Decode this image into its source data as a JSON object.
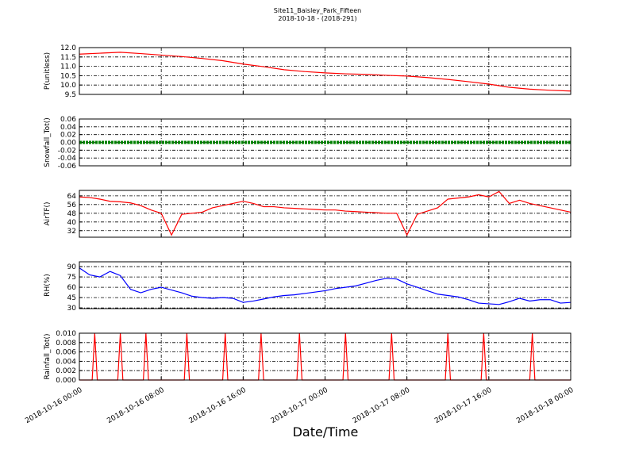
{
  "title": "Site11_Baisley_Park_Fifteen",
  "subtitle": "2018-10-18 - (2018-291)",
  "xlabel": "Date/Time",
  "chart_data": [
    {
      "type": "line",
      "ylabel": "P(unitless)",
      "grid": true,
      "xlim": [
        "2018-10-16 00:00",
        "2018-10-18 00:00"
      ],
      "ylim": [
        9.5,
        12
      ],
      "yticks": [
        9.5,
        {
          "value": 10,
          "label": "10.0"
        },
        10.5,
        {
          "value": 11,
          "label": "11.0"
        },
        11.5,
        {
          "value": 12,
          "label": "12.0"
        }
      ],
      "x": [
        "2018-10-16 00:00",
        "2018-10-16 02:00",
        "2018-10-16 04:00",
        "2018-10-16 06:00",
        "2018-10-16 08:00",
        "2018-10-16 10:00",
        "2018-10-16 12:00",
        "2018-10-16 14:00",
        "2018-10-16 16:00",
        "2018-10-16 18:00",
        "2018-10-16 20:00",
        "2018-10-16 22:00",
        "2018-10-17 00:00",
        "2018-10-17 02:00",
        "2018-10-17 04:00",
        "2018-10-17 06:00",
        "2018-10-17 08:00",
        "2018-10-17 10:00",
        "2018-10-17 12:00",
        "2018-10-17 14:00",
        "2018-10-17 16:00",
        "2018-10-17 18:00",
        "2018-10-17 20:00",
        "2018-10-17 22:00",
        "2018-10-18 00:00"
      ],
      "series": [
        {
          "name": "P",
          "color": "#ff0000",
          "values": [
            11.65,
            11.7,
            11.75,
            11.68,
            11.6,
            11.52,
            11.42,
            11.3,
            11.12,
            10.98,
            10.82,
            10.72,
            10.65,
            10.6,
            10.57,
            10.52,
            10.48,
            10.4,
            10.3,
            10.18,
            10.05,
            9.88,
            9.78,
            9.72,
            9.68
          ]
        }
      ]
    },
    {
      "type": "line",
      "ylabel": "Snowfall_Tot()",
      "grid": true,
      "xlim": [
        "2018-10-16 00:00",
        "2018-10-18 00:00"
      ],
      "ylim": [
        -0.06,
        0.06
      ],
      "yticks": [
        {
          "value": -0.06,
          "label": "-0.06"
        },
        -0.04,
        -0.02,
        {
          "value": 0,
          "label": "0.00"
        },
        0.02,
        0.04,
        0.06
      ],
      "x": [
        "2018-10-16 00:00",
        "2018-10-16 02:00",
        "2018-10-16 04:00",
        "2018-10-16 06:00",
        "2018-10-16 08:00",
        "2018-10-16 10:00",
        "2018-10-16 12:00",
        "2018-10-16 14:00",
        "2018-10-16 16:00",
        "2018-10-16 18:00",
        "2018-10-16 20:00",
        "2018-10-16 22:00",
        "2018-10-17 00:00",
        "2018-10-17 02:00",
        "2018-10-17 04:00",
        "2018-10-17 06:00",
        "2018-10-17 08:00",
        "2018-10-17 10:00",
        "2018-10-17 12:00",
        "2018-10-17 14:00",
        "2018-10-17 16:00",
        "2018-10-17 18:00",
        "2018-10-17 20:00",
        "2018-10-17 22:00",
        "2018-10-18 00:00"
      ],
      "series": [
        {
          "name": "Snowfall",
          "color": "#008000",
          "values": [
            0,
            0,
            0,
            0,
            0,
            0,
            0,
            0,
            0,
            0,
            0,
            0,
            0,
            0,
            0,
            0,
            0,
            0,
            0,
            0,
            0,
            0,
            0,
            0,
            0
          ]
        }
      ]
    },
    {
      "type": "line",
      "ylabel": "AirTF()",
      "grid": true,
      "xlim": [
        "2018-10-16 00:00",
        "2018-10-18 00:00"
      ],
      "ylim": [
        26,
        69
      ],
      "yticks": [
        32,
        40,
        48,
        56,
        64
      ],
      "x": [
        "2018-10-16 00:00",
        "2018-10-16 01:00",
        "2018-10-16 02:00",
        "2018-10-16 03:00",
        "2018-10-16 04:00",
        "2018-10-16 05:00",
        "2018-10-16 06:00",
        "2018-10-16 07:00",
        "2018-10-16 08:00",
        "2018-10-16 09:00",
        "2018-10-16 10:00",
        "2018-10-16 11:00",
        "2018-10-16 12:00",
        "2018-10-16 13:00",
        "2018-10-16 14:00",
        "2018-10-16 15:00",
        "2018-10-16 16:00",
        "2018-10-16 17:00",
        "2018-10-16 18:00",
        "2018-10-16 19:00",
        "2018-10-16 20:00",
        "2018-10-16 21:00",
        "2018-10-16 22:00",
        "2018-10-16 23:00",
        "2018-10-17 00:00",
        "2018-10-17 01:00",
        "2018-10-17 02:00",
        "2018-10-17 03:00",
        "2018-10-17 04:00",
        "2018-10-17 05:00",
        "2018-10-17 06:00",
        "2018-10-17 07:00",
        "2018-10-17 08:00",
        "2018-10-17 09:00",
        "2018-10-17 10:00",
        "2018-10-17 11:00",
        "2018-10-17 12:00",
        "2018-10-17 13:00",
        "2018-10-17 14:00",
        "2018-10-17 15:00",
        "2018-10-17 16:00",
        "2018-10-17 17:00",
        "2018-10-17 18:00",
        "2018-10-17 19:00",
        "2018-10-17 20:00",
        "2018-10-17 21:00",
        "2018-10-17 22:00",
        "2018-10-17 23:00",
        "2018-10-18 00:00"
      ],
      "series": [
        {
          "name": "AirTF",
          "color": "#ff0000",
          "values": [
            63,
            62.5,
            61,
            59,
            58.5,
            57.5,
            55,
            51,
            48,
            28,
            47,
            48,
            49,
            53,
            55,
            57,
            59,
            57,
            54,
            54,
            53,
            52.5,
            52,
            51.5,
            51,
            51,
            50,
            49.5,
            49,
            48.5,
            48,
            48,
            28,
            47,
            50,
            53,
            61,
            62,
            63,
            65,
            63,
            68,
            57,
            60,
            57,
            55,
            53,
            51,
            49
          ]
        }
      ]
    },
    {
      "type": "line",
      "ylabel": "RH(%)",
      "grid": true,
      "xlim": [
        "2018-10-16 00:00",
        "2018-10-18 00:00"
      ],
      "ylim": [
        29,
        97
      ],
      "yticks": [
        30,
        45,
        60,
        75,
        90
      ],
      "x": [
        "2018-10-16 00:00",
        "2018-10-16 01:00",
        "2018-10-16 02:00",
        "2018-10-16 03:00",
        "2018-10-16 04:00",
        "2018-10-16 05:00",
        "2018-10-16 06:00",
        "2018-10-16 07:00",
        "2018-10-16 08:00",
        "2018-10-16 09:00",
        "2018-10-16 10:00",
        "2018-10-16 11:00",
        "2018-10-16 12:00",
        "2018-10-16 13:00",
        "2018-10-16 14:00",
        "2018-10-16 15:00",
        "2018-10-16 16:00",
        "2018-10-16 17:00",
        "2018-10-16 18:00",
        "2018-10-16 19:00",
        "2018-10-16 20:00",
        "2018-10-16 21:00",
        "2018-10-16 22:00",
        "2018-10-16 23:00",
        "2018-10-17 00:00",
        "2018-10-17 01:00",
        "2018-10-17 02:00",
        "2018-10-17 03:00",
        "2018-10-17 04:00",
        "2018-10-17 05:00",
        "2018-10-17 06:00",
        "2018-10-17 07:00",
        "2018-10-17 08:00",
        "2018-10-17 09:00",
        "2018-10-17 10:00",
        "2018-10-17 11:00",
        "2018-10-17 12:00",
        "2018-10-17 13:00",
        "2018-10-17 14:00",
        "2018-10-17 15:00",
        "2018-10-17 16:00",
        "2018-10-17 17:00",
        "2018-10-17 18:00",
        "2018-10-17 19:00",
        "2018-10-17 20:00",
        "2018-10-17 21:00",
        "2018-10-17 22:00",
        "2018-10-17 23:00",
        "2018-10-18 00:00"
      ],
      "series": [
        {
          "name": "RH",
          "color": "#0000ff",
          "values": [
            88,
            78,
            75,
            83,
            77,
            57,
            52,
            57,
            60,
            56,
            52,
            47,
            45,
            44,
            45,
            44,
            38,
            40,
            43,
            46,
            48,
            49,
            51,
            53,
            55,
            58,
            60,
            62,
            66,
            70,
            73,
            72,
            65,
            60,
            55,
            50,
            48,
            46,
            42,
            37,
            36,
            35,
            39,
            44,
            40,
            42,
            42,
            37,
            38
          ]
        }
      ]
    },
    {
      "type": "line",
      "ylabel": "Rainfall_Tot()",
      "grid": true,
      "xlim": [
        "2018-10-16 00:00",
        "2018-10-18 00:00"
      ],
      "xticks": [
        {
          "value": "2018-10-16 00:00",
          "label": "2018-10-16 00:00"
        },
        {
          "value": "2018-10-16 08:00",
          "label": "2018-10-16 08:00"
        },
        {
          "value": "2018-10-16 16:00",
          "label": "2018-10-16 16:00"
        },
        {
          "value": "2018-10-17 00:00",
          "label": "2018-10-17 00:00"
        },
        {
          "value": "2018-10-17 08:00",
          "label": "2018-10-17 08:00"
        },
        {
          "value": "2018-10-17 16:00",
          "label": "2018-10-17 16:00"
        },
        {
          "value": "2018-10-18 00:00",
          "label": "2018-10-18 00:00"
        }
      ],
      "ylim": [
        0,
        0.01
      ],
      "yticks": [
        {
          "value": 0,
          "label": "0.000"
        },
        {
          "value": 0.002,
          "label": "0.002"
        },
        {
          "value": 0.004,
          "label": "0.004"
        },
        {
          "value": 0.006,
          "label": "0.006"
        },
        {
          "value": 0.008,
          "label": "0.008"
        },
        {
          "value": 0.01,
          "label": "0.010"
        }
      ],
      "x": [
        "2018-10-16 00:00",
        "2018-10-16 01:15",
        "2018-10-16 01:30",
        "2018-10-16 01:45",
        "2018-10-16 03:45",
        "2018-10-16 04:00",
        "2018-10-16 04:15",
        "2018-10-16 06:15",
        "2018-10-16 06:30",
        "2018-10-16 06:45",
        "2018-10-16 10:15",
        "2018-10-16 10:30",
        "2018-10-16 10:45",
        "2018-10-16 14:00",
        "2018-10-16 14:15",
        "2018-10-16 14:30",
        "2018-10-16 17:30",
        "2018-10-16 17:45",
        "2018-10-16 18:00",
        "2018-10-16 21:15",
        "2018-10-16 21:30",
        "2018-10-16 21:45",
        "2018-10-17 01:45",
        "2018-10-17 02:00",
        "2018-10-17 02:15",
        "2018-10-17 06:15",
        "2018-10-17 06:30",
        "2018-10-17 06:45",
        "2018-10-17 11:45",
        "2018-10-17 12:00",
        "2018-10-17 12:15",
        "2018-10-17 15:15",
        "2018-10-17 15:30",
        "2018-10-17 15:45",
        "2018-10-17 20:00",
        "2018-10-17 20:15",
        "2018-10-17 20:30",
        "2018-10-18 00:00"
      ],
      "series": [
        {
          "name": "Rainfall",
          "color": "#ff0000",
          "values": [
            0,
            0,
            0.01,
            0,
            0,
            0.01,
            0,
            0,
            0.01,
            0,
            0,
            0.01,
            0,
            0,
            0.01,
            0,
            0,
            0.01,
            0,
            0,
            0.01,
            0,
            0,
            0.01,
            0,
            0,
            0.01,
            0,
            0,
            0.01,
            0,
            0,
            0.01,
            0,
            0,
            0.01,
            0,
            0
          ]
        }
      ]
    }
  ]
}
